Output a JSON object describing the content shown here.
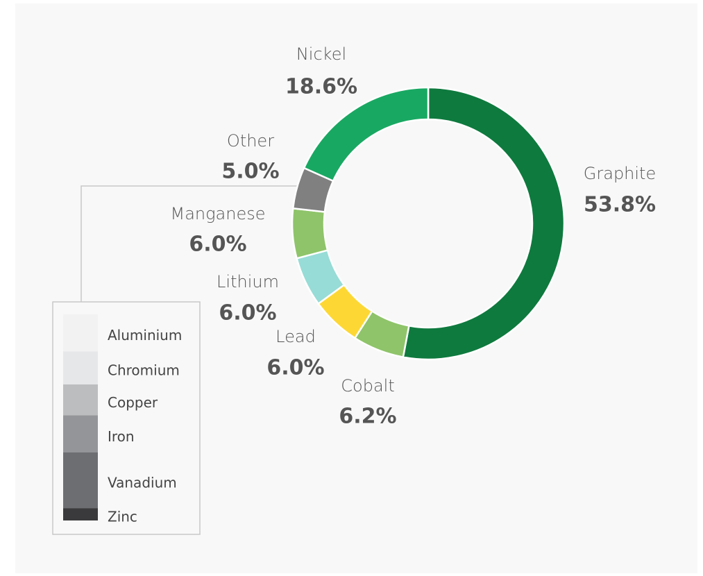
{
  "chart_data": {
    "type": "donut",
    "categories": [
      "Graphite",
      "Cobalt",
      "Lead",
      "Lithium",
      "Manganese",
      "Other",
      "Nickel"
    ],
    "values": [
      53.8,
      6.2,
      6.0,
      6.0,
      6.0,
      5.0,
      18.6
    ],
    "value_labels": [
      "53.8%",
      "6.2%",
      "6.0%",
      "6.0%",
      "6.0%",
      "5.0%",
      "18.6%"
    ],
    "colors": [
      "#0e7a3e",
      "#8fc46a",
      "#fdd835",
      "#97dcd6",
      "#8fc46a",
      "#808080",
      "#19a862"
    ],
    "other_breakdown": {
      "categories": [
        "Aluminium",
        "Chromium",
        "Copper",
        "Iron",
        "Vanadium",
        "Zinc"
      ],
      "values": [
        0.9,
        0.8,
        0.75,
        0.9,
        1.35,
        0.3
      ],
      "colors": [
        "#f2f2f2",
        "#e6e7e8",
        "#bcbdbf",
        "#939598",
        "#6d6e71",
        "#3a3a3c"
      ]
    }
  }
}
